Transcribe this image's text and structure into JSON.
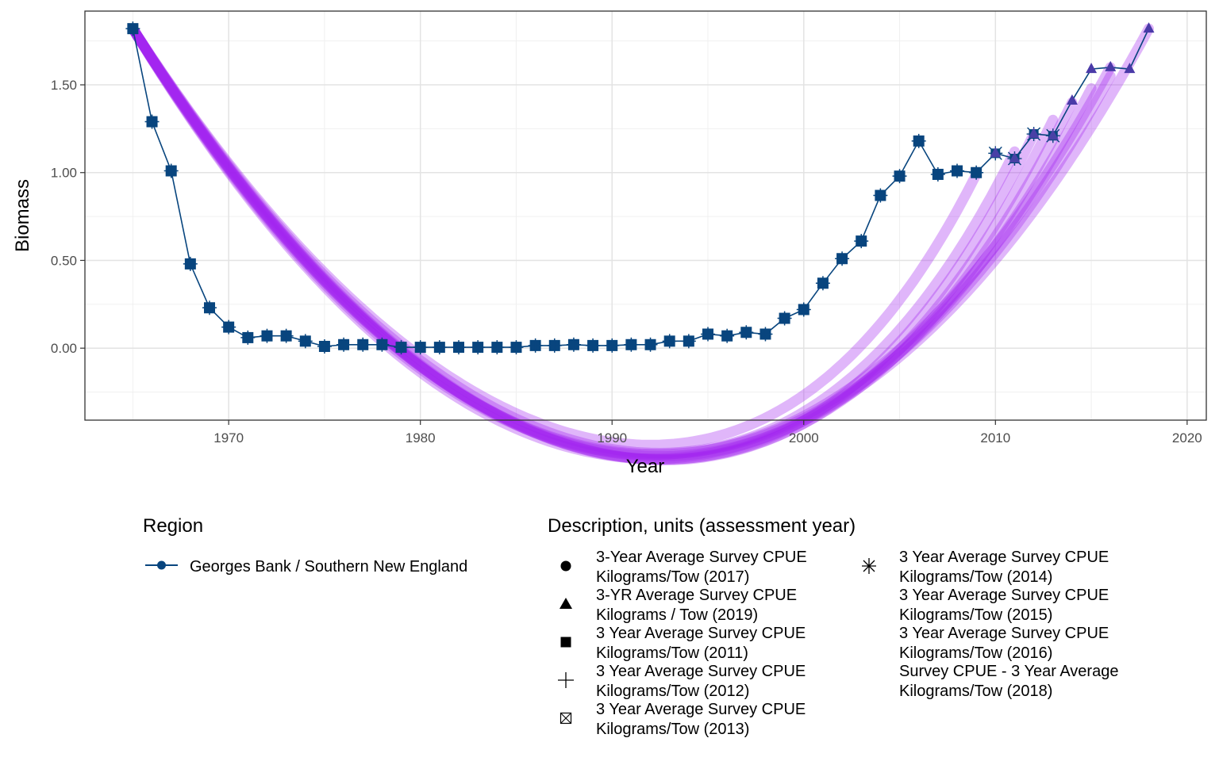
{
  "chart_data": {
    "type": "line",
    "title": "",
    "xlabel": "Year",
    "ylabel": "Biomass",
    "xlim": [
      1962.5,
      2021
    ],
    "ylim": [
      -0.41,
      1.92
    ],
    "x_ticks": [
      1970,
      1980,
      1990,
      2000,
      2010,
      2020
    ],
    "y_ticks": [
      0,
      0.5,
      1,
      1.5
    ],
    "y_tick_labels": [
      "0.00",
      "0.50",
      "1.00",
      "1.50"
    ],
    "grid": true,
    "colors": {
      "series": "#08457e",
      "smooth": "#a020f0"
    },
    "series": [
      {
        "name": "Georges Bank / Southern New England",
        "x": [
          1965,
          1966,
          1967,
          1968,
          1969,
          1970,
          1971,
          1972,
          1973,
          1974,
          1975,
          1976,
          1977,
          1978,
          1979,
          1980,
          1981,
          1982,
          1983,
          1984,
          1985,
          1986,
          1987,
          1988,
          1989,
          1990,
          1991,
          1992,
          1993,
          1994,
          1995,
          1996,
          1997,
          1998,
          1999,
          2000,
          2001,
          2002,
          2003,
          2004,
          2005,
          2006,
          2007,
          2008,
          2009,
          2010,
          2011,
          2012,
          2013,
          2014,
          2015,
          2016,
          2017,
          2018
        ],
        "y": [
          1.82,
          1.29,
          1.01,
          0.48,
          0.23,
          0.12,
          0.06,
          0.07,
          0.07,
          0.04,
          0.01,
          0.02,
          0.02,
          0.02,
          0.005,
          0.005,
          0.005,
          0.005,
          0.005,
          0.005,
          0.005,
          0.015,
          0.015,
          0.02,
          0.015,
          0.015,
          0.02,
          0.02,
          0.04,
          0.04,
          0.08,
          0.07,
          0.09,
          0.08,
          0.17,
          0.22,
          0.37,
          0.51,
          0.61,
          0.87,
          0.98,
          1.18,
          0.99,
          1.01,
          1.0,
          1.11,
          1.08,
          1.22,
          1.21,
          1.41,
          1.59,
          1.6,
          1.59,
          1.82
        ]
      }
    ],
    "smooth_fits": [
      {
        "a": 1.82,
        "b": -0.18,
        "c": 0.0033,
        "endYear": 2018,
        "endY": 1.82
      },
      {
        "a": 1.82,
        "b": -0.178,
        "c": 0.00325,
        "endYear": 2016,
        "endY": 1.6
      },
      {
        "a": 1.82,
        "b": -0.176,
        "c": 0.00318,
        "endYear": 2016,
        "endY": 1.55
      },
      {
        "a": 1.82,
        "b": -0.175,
        "c": 0.00312,
        "endYear": 2015,
        "endY": 1.48
      },
      {
        "a": 1.82,
        "b": -0.174,
        "c": 0.00305,
        "endYear": 2014,
        "endY": 1.4
      },
      {
        "a": 1.82,
        "b": -0.173,
        "c": 0.003,
        "endYear": 2013,
        "endY": 1.3
      },
      {
        "a": 1.82,
        "b": -0.172,
        "c": 0.00296,
        "endYear": 2012,
        "endY": 1.22
      },
      {
        "a": 1.82,
        "b": -0.17,
        "c": 0.00293,
        "endYear": 2011,
        "endY": 1.12
      },
      {
        "a": 1.82,
        "b": -0.168,
        "c": 0.0029,
        "endYear": 2009,
        "endY": 0.99
      }
    ],
    "legend": {
      "position": "bottom",
      "region_title": "Region",
      "region_item": "Georges Bank / Southern New England",
      "description_title": "Description, units (assessment year)",
      "description_items": [
        {
          "shape": "circle",
          "line1": "3-Year Average Survey CPUE",
          "line2": "Kilograms/Tow (2017)"
        },
        {
          "shape": "triangle",
          "line1": "3-YR Average Survey CPUE",
          "line2": "Kilograms / Tow (2019)"
        },
        {
          "shape": "square",
          "line1": "3 Year Average Survey CPUE",
          "line2": "Kilograms/Tow (2011)"
        },
        {
          "shape": "plus",
          "line1": "3 Year Average Survey CPUE",
          "line2": "Kilograms/Tow (2012)"
        },
        {
          "shape": "boxx",
          "line1": "3 Year Average Survey CPUE",
          "line2": "Kilograms/Tow (2013)"
        },
        {
          "shape": "asterisk",
          "line1": "3 Year Average Survey CPUE",
          "line2": "Kilograms/Tow (2014)"
        },
        {
          "shape": "none",
          "line1": "3 Year Average Survey CPUE",
          "line2": "Kilograms/Tow (2015)"
        },
        {
          "shape": "none",
          "line1": "3 Year Average Survey CPUE",
          "line2": "Kilograms/Tow (2016)"
        },
        {
          "shape": "none",
          "line1": "Survey CPUE - 3 Year Average",
          "line2": "Kilograms/Tow (2018)"
        }
      ]
    }
  }
}
